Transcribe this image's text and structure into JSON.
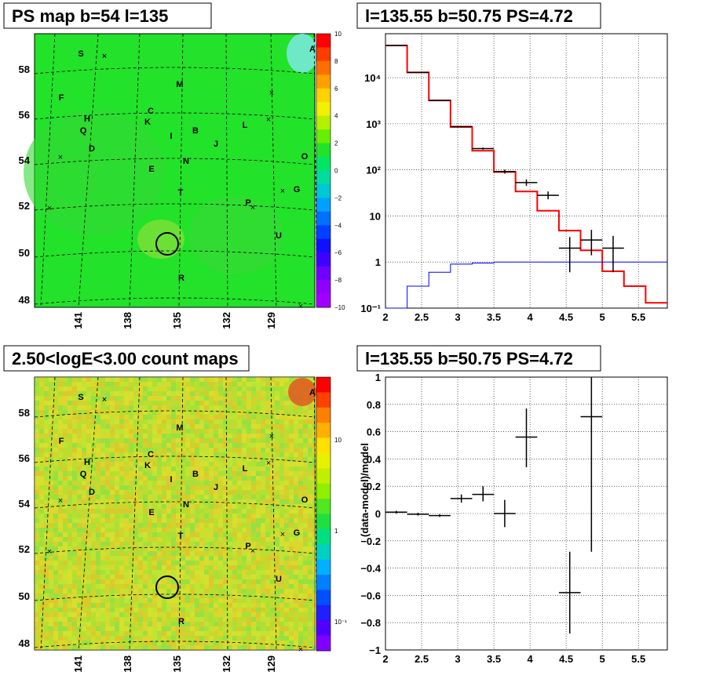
{
  "panels": {
    "tl_title": "PS map b=54 l=135",
    "tr_title": "l=135.55 b=50.75 PS=4.72",
    "bl_title": "2.50<logE<3.00 count maps",
    "br_title": "l=135.55 b=50.75 PS=4.72",
    "br_ylabel": "(data-model)/model"
  },
  "skymap": {
    "y_ticks": [
      "58",
      "56",
      "54",
      "52",
      "50",
      "48"
    ],
    "x_ticks": [
      "141",
      "138",
      "135",
      "132",
      "129"
    ],
    "sources": [
      {
        "label": "S"
      },
      {
        "label": "A"
      },
      {
        "label": "M"
      },
      {
        "label": "F"
      },
      {
        "label": "C"
      },
      {
        "label": "H"
      },
      {
        "label": "K"
      },
      {
        "label": "Q"
      },
      {
        "label": "B"
      },
      {
        "label": "L"
      },
      {
        "label": "I"
      },
      {
        "label": "D"
      },
      {
        "label": "J"
      },
      {
        "label": "O"
      },
      {
        "label": "N"
      },
      {
        "label": "E"
      },
      {
        "label": "G"
      },
      {
        "label": "T"
      },
      {
        "label": "P"
      },
      {
        "label": "U"
      },
      {
        "label": "R"
      }
    ],
    "ps_colorbar_ticks": [
      "10",
      "8",
      "6",
      "4",
      "2",
      "0",
      "−2",
      "−4",
      "−6",
      "−8",
      "−10"
    ],
    "count_colorbar_ticks": [
      "10",
      "1",
      "10⁻¹"
    ]
  },
  "chart_data": [
    {
      "type": "line",
      "title": "l=135.55 b=50.75 PS=4.72",
      "xlim": [
        2,
        5.9
      ],
      "ylim": [
        0.1,
        90000
      ],
      "yscale": "log",
      "x_ticks": [
        "2",
        "2.5",
        "3",
        "3.5",
        "4",
        "4.5",
        "5",
        "5.5"
      ],
      "y_ticks": [
        "10⁻¹",
        "1",
        "10",
        "10²",
        "10³",
        "10⁴"
      ],
      "grid": true,
      "series": [
        {
          "color": "#ff0000",
          "kind": "step",
          "x_edges": [
            2.0,
            2.3,
            2.6,
            2.9,
            3.2,
            3.5,
            3.8,
            4.1,
            4.4,
            4.7,
            5.0,
            5.3,
            5.6,
            5.9
          ],
          "values": [
            50000,
            13000,
            3200,
            850,
            260,
            90,
            34,
            13,
            4.8,
            1.8,
            0.63,
            0.3,
            0.13
          ]
        },
        {
          "color": "#0000ff",
          "kind": "step",
          "x_edges": [
            2.0,
            2.3,
            2.6,
            2.9,
            3.2,
            3.5,
            3.8,
            4.1,
            4.4,
            4.7,
            5.0,
            5.3,
            5.6,
            5.9
          ],
          "values": [
            0.08,
            0.3,
            0.6,
            0.9,
            0.95,
            1.0,
            1.0,
            1.0,
            1.0,
            1.0,
            1.0,
            1.0,
            1.0
          ]
        },
        {
          "color": "#000000",
          "kind": "errorbars",
          "points": [
            {
              "x": 2.15,
              "y": 50000,
              "xerr": 0.15,
              "ylo": 49000,
              "yhi": 51000
            },
            {
              "x": 2.45,
              "y": 13000,
              "xerr": 0.15,
              "ylo": 12800,
              "yhi": 13200
            },
            {
              "x": 2.75,
              "y": 3200,
              "xerr": 0.15,
              "ylo": 3150,
              "yhi": 3250
            },
            {
              "x": 3.05,
              "y": 870,
              "xerr": 0.15,
              "ylo": 840,
              "yhi": 900
            },
            {
              "x": 3.35,
              "y": 290,
              "xerr": 0.15,
              "ylo": 275,
              "yhi": 305
            },
            {
              "x": 3.65,
              "y": 92,
              "xerr": 0.15,
              "ylo": 83,
              "yhi": 101
            },
            {
              "x": 3.95,
              "y": 53,
              "xerr": 0.15,
              "ylo": 45,
              "yhi": 62
            },
            {
              "x": 4.25,
              "y": 28,
              "xerr": 0.15,
              "ylo": 23,
              "yhi": 34
            },
            {
              "x": 4.55,
              "y": 2,
              "xerr": 0.15,
              "ylo": 0.6,
              "yhi": 3.5
            },
            {
              "x": 4.85,
              "y": 3,
              "xerr": 0.15,
              "ylo": 1.4,
              "yhi": 5
            },
            {
              "x": 5.15,
              "y": 2,
              "xerr": 0.15,
              "ylo": 0.6,
              "yhi": 3.7
            }
          ]
        }
      ]
    },
    {
      "type": "scatter",
      "title": "l=135.55 b=50.75 PS=4.72",
      "ylabel": "(data-model)/model",
      "xlim": [
        2,
        5.9
      ],
      "ylim": [
        -1,
        1
      ],
      "x_ticks": [
        "2",
        "2.5",
        "3",
        "3.5",
        "4",
        "4.5",
        "5",
        "5.5"
      ],
      "y_ticks": [
        "1",
        "0.8",
        "0.6",
        "0.4",
        "0.2",
        "0",
        "−0.2",
        "−0.4",
        "−0.6",
        "−0.8",
        "−1"
      ],
      "grid": true,
      "points": [
        {
          "x": 2.15,
          "y": 0.01,
          "xerr": 0.15,
          "ylo": 0.0,
          "yhi": 0.02
        },
        {
          "x": 2.45,
          "y": -0.005,
          "xerr": 0.15,
          "ylo": -0.015,
          "yhi": 0.005
        },
        {
          "x": 2.75,
          "y": -0.015,
          "xerr": 0.15,
          "ylo": -0.025,
          "yhi": -0.005
        },
        {
          "x": 3.05,
          "y": 0.11,
          "xerr": 0.15,
          "ylo": 0.08,
          "yhi": 0.14
        },
        {
          "x": 3.35,
          "y": 0.14,
          "xerr": 0.15,
          "ylo": 0.09,
          "yhi": 0.2
        },
        {
          "x": 3.65,
          "y": 0.0,
          "xerr": 0.15,
          "ylo": -0.1,
          "yhi": 0.1
        },
        {
          "x": 3.95,
          "y": 0.56,
          "xerr": 0.15,
          "ylo": 0.34,
          "yhi": 0.77
        },
        {
          "x": 4.55,
          "y": -0.58,
          "xerr": 0.15,
          "ylo": -0.88,
          "yhi": -0.28
        },
        {
          "x": 4.85,
          "y": 0.71,
          "xerr": 0.15,
          "ylo": -0.28,
          "yhi": 1.0
        }
      ]
    }
  ]
}
